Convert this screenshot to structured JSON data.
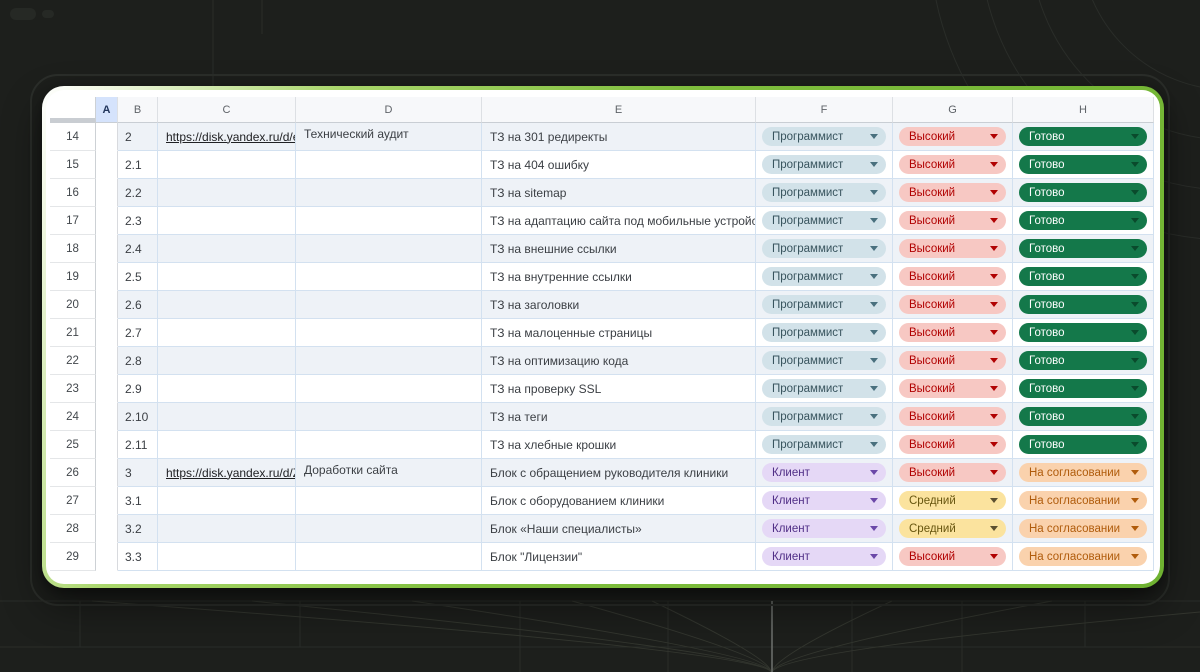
{
  "colors": {
    "background": "#1d1f1c",
    "frame_green": "#7fbe3d",
    "frame_highlight": "#ffffff",
    "gridline": "#d3e1f0",
    "band_row": "#eef2f7",
    "selected_header_bg": "#d5e3fc",
    "selected_header_fg": "#22365c"
  },
  "chips": {
    "programmer": {
      "label": "Программист",
      "bg": "#d2e2e9",
      "fg": "#38545e",
      "arrow": "#49707e"
    },
    "client": {
      "label": "Клиент",
      "bg": "#e5d8f6",
      "fg": "#502e86",
      "arrow": "#6b48a8"
    },
    "high": {
      "label": "Высокий",
      "bg": "#f7c8c3",
      "fg": "#b10202",
      "arrow": "#b10202"
    },
    "medium": {
      "label": "Средний",
      "bg": "#fbe39e",
      "fg": "#68560f",
      "arrow": "#5c5030"
    },
    "done": {
      "label": "Готово",
      "bg": "#14784a",
      "fg": "#ffffff",
      "arrow": "#0a4a2c"
    },
    "review": {
      "label": "На согласовании",
      "bg": "#fad2ad",
      "fg": "#b05c0c",
      "arrow": "#b05c0c"
    }
  },
  "sheet": {
    "columns": [
      {
        "letter": "A",
        "selected": true
      },
      {
        "letter": "B",
        "selected": false
      },
      {
        "letter": "C",
        "selected": false
      },
      {
        "letter": "D",
        "selected": false
      },
      {
        "letter": "E",
        "selected": false
      },
      {
        "letter": "F",
        "selected": false
      },
      {
        "letter": "G",
        "selected": false
      },
      {
        "letter": "H",
        "selected": false
      }
    ],
    "rows": [
      {
        "n": "14",
        "b": "2",
        "c": "https://disk.yandex.ru/d/e",
        "d": "Технический аудит",
        "e": "ТЗ на 301 редиректы",
        "role": "programmer",
        "priority": "high",
        "status": "done"
      },
      {
        "n": "15",
        "b": "2.1",
        "c": "",
        "d": "",
        "e": "ТЗ на 404 ошибку",
        "role": "programmer",
        "priority": "high",
        "status": "done"
      },
      {
        "n": "16",
        "b": "2.2",
        "c": "",
        "d": "",
        "e": "ТЗ на sitemap",
        "role": "programmer",
        "priority": "high",
        "status": "done"
      },
      {
        "n": "17",
        "b": "2.3",
        "c": "",
        "d": "",
        "e": "ТЗ на адаптацию сайта под мобильные устройства",
        "role": "programmer",
        "priority": "high",
        "status": "done"
      },
      {
        "n": "18",
        "b": "2.4",
        "c": "",
        "d": "",
        "e": "ТЗ на внешние ссылки",
        "role": "programmer",
        "priority": "high",
        "status": "done"
      },
      {
        "n": "19",
        "b": "2.5",
        "c": "",
        "d": "",
        "e": "ТЗ на внутренние ссылки",
        "role": "programmer",
        "priority": "high",
        "status": "done"
      },
      {
        "n": "20",
        "b": "2.6",
        "c": "",
        "d": "",
        "e": "ТЗ на заголовки",
        "role": "programmer",
        "priority": "high",
        "status": "done"
      },
      {
        "n": "21",
        "b": "2.7",
        "c": "",
        "d": "",
        "e": "ТЗ на малоценные страницы",
        "role": "programmer",
        "priority": "high",
        "status": "done"
      },
      {
        "n": "22",
        "b": "2.8",
        "c": "",
        "d": "",
        "e": "ТЗ на оптимизацию кода",
        "role": "programmer",
        "priority": "high",
        "status": "done"
      },
      {
        "n": "23",
        "b": "2.9",
        "c": "",
        "d": "",
        "e": "ТЗ на проверку SSL",
        "role": "programmer",
        "priority": "high",
        "status": "done"
      },
      {
        "n": "24",
        "b": "2.10",
        "c": "",
        "d": "",
        "e": "ТЗ на теги",
        "role": "programmer",
        "priority": "high",
        "status": "done"
      },
      {
        "n": "25",
        "b": "2.11",
        "c": "",
        "d": "",
        "e": "ТЗ на хлебные крошки",
        "role": "programmer",
        "priority": "high",
        "status": "done"
      },
      {
        "n": "26",
        "b": "3",
        "c": "https://disk.yandex.ru/d/Z",
        "d": "Доработки сайта",
        "e": "Блок с обращением руководителя клиники",
        "role": "client",
        "priority": "high",
        "status": "review"
      },
      {
        "n": "27",
        "b": "3.1",
        "c": "",
        "d": "",
        "e": "Блок с оборудованием клиники",
        "role": "client",
        "priority": "medium",
        "status": "review"
      },
      {
        "n": "28",
        "b": "3.2",
        "c": "",
        "d": "",
        "e": "Блок «Наши специалисты»",
        "role": "client",
        "priority": "medium",
        "status": "review"
      },
      {
        "n": "29",
        "b": "3.3",
        "c": "",
        "d": "",
        "e": "Блок \"Лицензии\"",
        "role": "client",
        "priority": "high",
        "status": "review"
      }
    ]
  }
}
